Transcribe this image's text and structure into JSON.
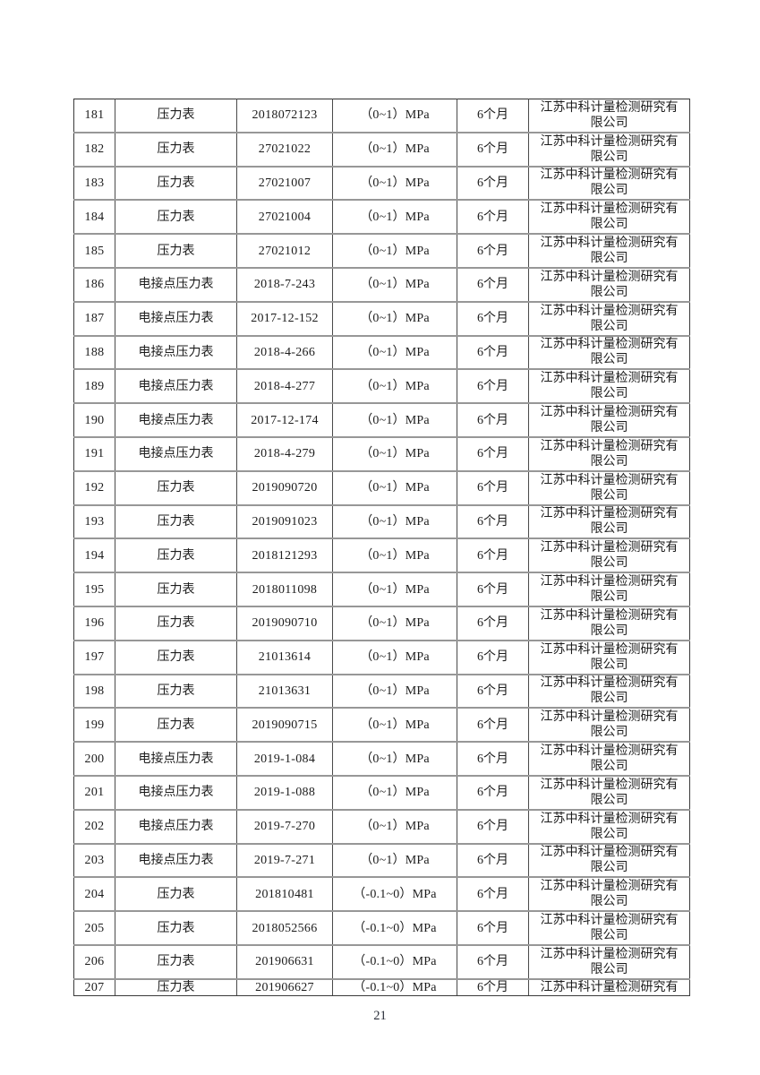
{
  "page": {
    "number": "21"
  },
  "table": {
    "columns": [
      "index",
      "name",
      "serial",
      "range",
      "period",
      "company"
    ],
    "rows": [
      {
        "index": "181",
        "name": "压力表",
        "serial": "2018072123",
        "range": "（0~1）MPa",
        "period": "6个月",
        "company": "江苏中科计量检测研究有\n限公司"
      },
      {
        "index": "182",
        "name": "压力表",
        "serial": "27021022",
        "range": "（0~1）MPa",
        "period": "6个月",
        "company": "江苏中科计量检测研究有\n限公司"
      },
      {
        "index": "183",
        "name": "压力表",
        "serial": "27021007",
        "range": "（0~1）MPa",
        "period": "6个月",
        "company": "江苏中科计量检测研究有\n限公司"
      },
      {
        "index": "184",
        "name": "压力表",
        "serial": "27021004",
        "range": "（0~1）MPa",
        "period": "6个月",
        "company": "江苏中科计量检测研究有\n限公司"
      },
      {
        "index": "185",
        "name": "压力表",
        "serial": "27021012",
        "range": "（0~1）MPa",
        "period": "6个月",
        "company": "江苏中科计量检测研究有\n限公司"
      },
      {
        "index": "186",
        "name": "电接点压力表",
        "serial": "2018-7-243",
        "range": "（0~1）MPa",
        "period": "6个月",
        "company": "江苏中科计量检测研究有\n限公司"
      },
      {
        "index": "187",
        "name": "电接点压力表",
        "serial": "2017-12-152",
        "range": "（0~1）MPa",
        "period": "6个月",
        "company": "江苏中科计量检测研究有\n限公司"
      },
      {
        "index": "188",
        "name": "电接点压力表",
        "serial": "2018-4-266",
        "range": "（0~1）MPa",
        "period": "6个月",
        "company": "江苏中科计量检测研究有\n限公司"
      },
      {
        "index": "189",
        "name": "电接点压力表",
        "serial": "2018-4-277",
        "range": "（0~1）MPa",
        "period": "6个月",
        "company": "江苏中科计量检测研究有\n限公司"
      },
      {
        "index": "190",
        "name": "电接点压力表",
        "serial": "2017-12-174",
        "range": "（0~1）MPa",
        "period": "6个月",
        "company": "江苏中科计量检测研究有\n限公司"
      },
      {
        "index": "191",
        "name": "电接点压力表",
        "serial": "2018-4-279",
        "range": "（0~1）MPa",
        "period": "6个月",
        "company": "江苏中科计量检测研究有\n限公司"
      },
      {
        "index": "192",
        "name": "压力表",
        "serial": "2019090720",
        "range": "（0~1）MPa",
        "period": "6个月",
        "company": "江苏中科计量检测研究有\n限公司"
      },
      {
        "index": "193",
        "name": "压力表",
        "serial": "2019091023",
        "range": "（0~1）MPa",
        "period": "6个月",
        "company": "江苏中科计量检测研究有\n限公司"
      },
      {
        "index": "194",
        "name": "压力表",
        "serial": "2018121293",
        "range": "（0~1）MPa",
        "period": "6个月",
        "company": "江苏中科计量检测研究有\n限公司"
      },
      {
        "index": "195",
        "name": "压力表",
        "serial": "2018011098",
        "range": "（0~1）MPa",
        "period": "6个月",
        "company": "江苏中科计量检测研究有\n限公司"
      },
      {
        "index": "196",
        "name": "压力表",
        "serial": "2019090710",
        "range": "（0~1）MPa",
        "period": "6个月",
        "company": "江苏中科计量检测研究有\n限公司"
      },
      {
        "index": "197",
        "name": "压力表",
        "serial": "21013614",
        "range": "（0~1）MPa",
        "period": "6个月",
        "company": "江苏中科计量检测研究有\n限公司"
      },
      {
        "index": "198",
        "name": "压力表",
        "serial": "21013631",
        "range": "（0~1）MPa",
        "period": "6个月",
        "company": "江苏中科计量检测研究有\n限公司"
      },
      {
        "index": "199",
        "name": "压力表",
        "serial": "2019090715",
        "range": "（0~1）MPa",
        "period": "6个月",
        "company": "江苏中科计量检测研究有\n限公司"
      },
      {
        "index": "200",
        "name": "电接点压力表",
        "serial": "2019-1-084",
        "range": "（0~1）MPa",
        "period": "6个月",
        "company": "江苏中科计量检测研究有\n限公司"
      },
      {
        "index": "201",
        "name": "电接点压力表",
        "serial": "2019-1-088",
        "range": "（0~1）MPa",
        "period": "6个月",
        "company": "江苏中科计量检测研究有\n限公司"
      },
      {
        "index": "202",
        "name": "电接点压力表",
        "serial": "2019-7-270",
        "range": "（0~1）MPa",
        "period": "6个月",
        "company": "江苏中科计量检测研究有\n限公司"
      },
      {
        "index": "203",
        "name": "电接点压力表",
        "serial": "2019-7-271",
        "range": "（0~1）MPa",
        "period": "6个月",
        "company": "江苏中科计量检测研究有\n限公司"
      },
      {
        "index": "204",
        "name": "压力表",
        "serial": "201810481",
        "range": "（-0.1~0）MPa",
        "period": "6个月",
        "company": "江苏中科计量检测研究有\n限公司"
      },
      {
        "index": "205",
        "name": "压力表",
        "serial": "2018052566",
        "range": "（-0.1~0）MPa",
        "period": "6个月",
        "company": "江苏中科计量检测研究有\n限公司"
      },
      {
        "index": "206",
        "name": "压力表",
        "serial": "201906631",
        "range": "（-0.1~0）MPa",
        "period": "6个月",
        "company": "江苏中科计量检测研究有\n限公司"
      },
      {
        "index": "207",
        "name": "压力表",
        "serial": "201906627",
        "range": "（-0.1~0）MPa",
        "period": "6个月",
        "company": "江苏中科计量检测研究有"
      }
    ]
  }
}
